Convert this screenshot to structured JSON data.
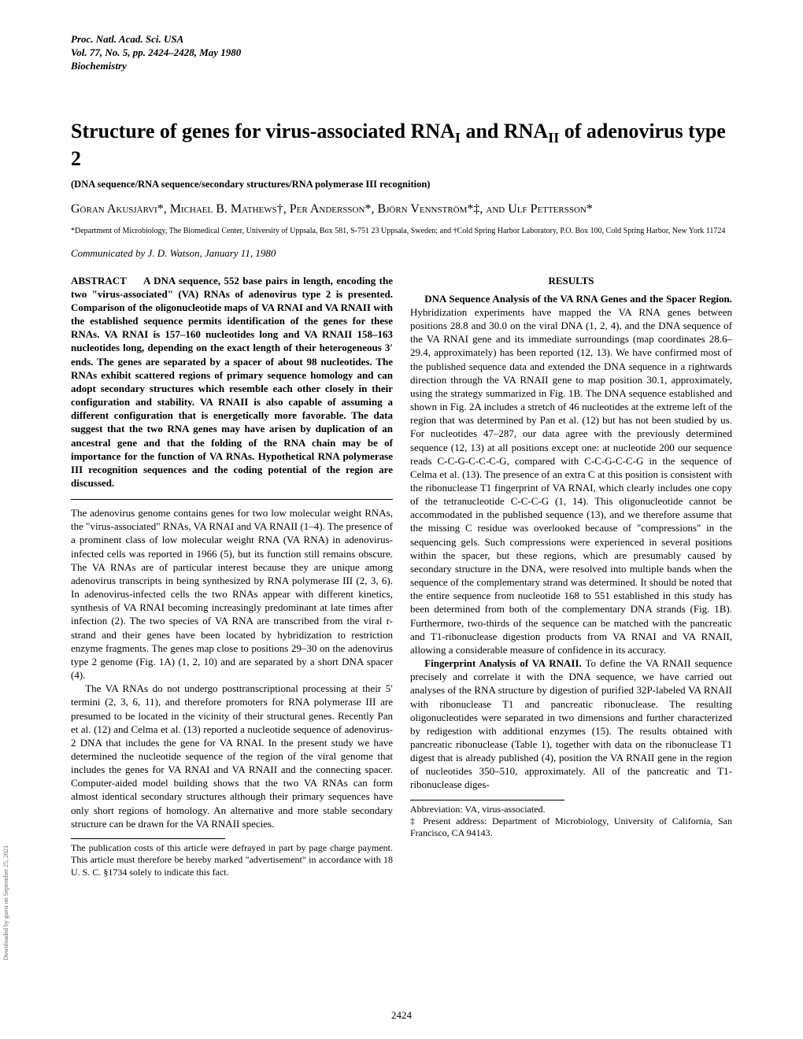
{
  "header": {
    "journal": "Proc. Natl. Acad. Sci. USA",
    "volume": "Vol. 77, No. 5, pp. 2424–2428, May 1980",
    "section": "Biochemistry"
  },
  "title": "Structure of genes for virus-associated RNAI and RNAII of adenovirus type 2",
  "subtitle": "(DNA sequence/RNA sequence/secondary structures/RNA polymerase III recognition)",
  "authors": "Göran Akusjärvi*, Michael B. Mathews†, Per Andersson*, Björn Vennström*‡, and Ulf Pettersson*",
  "affiliation": "*Department of Microbiology, The Biomedical Center, University of Uppsala, Box 581, S-751 23 Uppsala, Sweden; and †Cold Spring Harbor Laboratory, P.O. Box 100, Cold Spring Harbor, New York 11724",
  "communicated": "Communicated by J. D. Watson, January 11, 1980",
  "abstract": {
    "label": "ABSTRACT",
    "text": "A DNA sequence, 552 base pairs in length, encoding the two \"virus-associated\" (VA) RNAs of adenovirus type 2 is presented. Comparison of the oligonucleotide maps of VA RNAI and VA RNAII with the established sequence permits identification of the genes for these RNAs. VA RNAI is 157–160 nucleotides long and VA RNAII 158–163 nucleotides long, depending on the exact length of their heterogeneous 3′ ends. The genes are separated by a spacer of about 98 nucleotides. The RNAs exhibit scattered regions of primary sequence homology and can adopt secondary structures which resemble each other closely in their configuration and stability. VA RNAII is also capable of assuming a different configuration that is energetically more favorable. The data suggest that the two RNA genes may have arisen by duplication of an ancestral gene and that the folding of the RNA chain may be of importance for the function of VA RNAs. Hypothetical RNA polymerase III recognition sequences and the coding potential of the region are discussed."
  },
  "intro": {
    "p1": "The adenovirus genome contains genes for two low molecular weight RNAs, the \"virus-associated\" RNAs, VA RNAI and VA RNAII (1–4). The presence of a prominent class of low molecular weight RNA (VA RNA) in adenovirus-infected cells was reported in 1966 (5), but its function still remains obscure. The VA RNAs are of particular interest because they are unique among adenovirus transcripts in being synthesized by RNA polymerase III (2, 3, 6). In adenovirus-infected cells the two RNAs appear with different kinetics, synthesis of VA RNAI becoming increasingly predominant at late times after infection (2). The two species of VA RNA are transcribed from the viral r-strand and their genes have been located by hybridization to restriction enzyme fragments. The genes map close to positions 29–30 on the adenovirus type 2 genome (Fig. 1A) (1, 2, 10) and are separated by a short DNA spacer (4).",
    "p2": "The VA RNAs do not undergo posttranscriptional processing at their 5′ termini (2, 3, 6, 11), and therefore promoters for RNA polymerase III are presumed to be located in the vicinity of their structural genes. Recently Pan et al. (12) and Celma et al. (13) reported a nucleotide sequence of adenovirus-2 DNA that includes the gene for VA RNAI. In the present study we have determined the nucleotide sequence of the region of the viral genome that includes the genes for VA RNAI and VA RNAII and the connecting spacer. Computer-aided model building shows that the two VA RNAs can form almost identical secondary structures although their primary sequences have only short regions of homology. An alternative and more stable secondary structure can be drawn for the VA RNAII species."
  },
  "results": {
    "heading": "RESULTS",
    "p1_lead": "DNA Sequence Analysis of the VA RNA Genes and the Spacer Region.",
    "p1": " Hybridization experiments have mapped the VA RNA genes between positions 28.8 and 30.0 on the viral DNA (1, 2, 4), and the DNA sequence of the VA RNAI gene and its immediate surroundings (map coordinates 28.6–29.4, approximately) has been reported (12, 13). We have confirmed most of the published sequence data and extended the DNA sequence in a rightwards direction through the VA RNAII gene to map position 30.1, approximately, using the strategy summarized in Fig. 1B. The DNA sequence established and shown in Fig. 2A includes a stretch of 46 nucleotides at the extreme left of the region that was determined by Pan et al. (12) but has not been studied by us. For nucleotides 47–287, our data agree with the previously determined sequence (12, 13) at all positions except one: at nucleotide 200 our sequence reads C-C-G-C-C-C-G, compared with C-C-G-C-C-G in the sequence of Celma et al. (13). The presence of an extra C at this position is consistent with the ribonuclease T1 fingerprint of VA RNAI, which clearly includes one copy of the tetranucleotide C-C-C-G (1, 14). This oligonucleotide cannot be accommodated in the published sequence (13), and we therefore assume that the missing C residue was overlooked because of \"compressions\" in the sequencing gels. Such compressions were experienced in several positions within the spacer, but these regions, which are presumably caused by secondary structure in the DNA, were resolved into multiple bands when the sequence of the complementary strand was determined. It should be noted that the entire sequence from nucleotide 168 to 551 established in this study has been determined from both of the complementary DNA strands (Fig. 1B). Furthermore, two-thirds of the sequence can be matched with the pancreatic and T1-ribonuclease digestion products from VA RNAI and VA RNAII, allowing a considerable measure of confidence in its accuracy.",
    "p2_lead": "Fingerprint Analysis of VA RNAII.",
    "p2": " To define the VA RNAII sequence precisely and correlate it with the DNA sequence, we have carried out analyses of the RNA structure by digestion of purified 32P-labeled VA RNAII with ribonuclease T1 and pancreatic ribonuclease. The resulting oligonucleotides were separated in two dimensions and further characterized by redigestion with additional enzymes (15). The results obtained with pancreatic ribonuclease (Table 1), together with data on the ribonuclease T1 digest that is already published (4), position the VA RNAII gene in the region of nucleotides 350–510, approximately. All of the pancreatic and T1-ribonuclease diges-"
  },
  "footnotes": {
    "left": "The publication costs of this article were defrayed in part by page charge payment. This article must therefore be hereby marked \"advertisement\" in accordance with 18 U. S. C. §1734 solely to indicate this fact.",
    "right_abbr": "Abbreviation: VA, virus-associated.",
    "right_addr": "‡ Present address: Department of Microbiology, University of California, San Francisco, CA 94143."
  },
  "page_number": "2424",
  "sidebar": "Downloaded by guest on September 25, 2021"
}
